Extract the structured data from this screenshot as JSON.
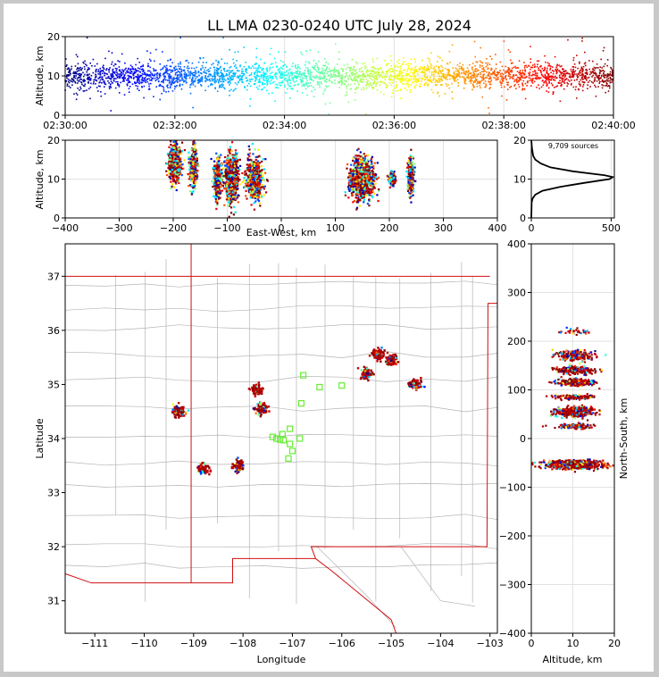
{
  "title": "LL LMA 0230-0240 UTC July 28, 2024",
  "chart_data": [
    {
      "id": "time-height",
      "type": "scatter",
      "ylabel": "Altitude, km",
      "ylim": [
        0,
        20
      ],
      "y_ticks": [
        0,
        10,
        20
      ],
      "x_ticks": [
        "02:30:00",
        "02:32:00",
        "02:34:00",
        "02:36:00",
        "02:38:00",
        "02:40:00"
      ],
      "x_range_seconds": [
        0,
        600
      ],
      "points_color": "time-coded (blue to dark red)"
    },
    {
      "id": "ew-altitude",
      "type": "scatter",
      "xlabel": "East-West, km",
      "ylabel": "Altitude, km",
      "xlim": [
        -400,
        400
      ],
      "ylim": [
        0,
        20
      ],
      "x_ticks": [
        -400,
        -300,
        -200,
        -100,
        0,
        100,
        200,
        300,
        400
      ],
      "y_ticks": [
        0,
        10,
        20
      ],
      "clusters": [
        {
          "x": -197,
          "alt": 14,
          "spread_x": 6,
          "spread_alt": 3
        },
        {
          "x": -162,
          "alt": 13,
          "spread_x": 4,
          "spread_alt": 3
        },
        {
          "x": -118,
          "alt": 10,
          "spread_x": 4,
          "spread_alt": 3
        },
        {
          "x": -92,
          "alt": 10,
          "spread_x": 7,
          "spread_alt": 4
        },
        {
          "x": -50,
          "alt": 10,
          "spread_x": 8,
          "spread_alt": 3
        },
        {
          "x": 150,
          "alt": 10,
          "spread_x": 12,
          "spread_alt": 3
        },
        {
          "x": 205,
          "alt": 10,
          "spread_x": 3,
          "spread_alt": 1
        },
        {
          "x": 240,
          "alt": 11,
          "spread_x": 3,
          "spread_alt": 3
        }
      ]
    },
    {
      "id": "altitude-histogram",
      "type": "line",
      "annotation": "9,709 sources",
      "xlim": [
        0,
        520
      ],
      "ylim": [
        0,
        20
      ],
      "x_ticks": [
        0,
        500
      ],
      "y_ticks": [
        0,
        10,
        20
      ],
      "altitude": [
        0,
        4,
        5,
        6,
        7,
        8,
        9,
        10,
        10.5,
        11,
        12,
        13,
        14,
        15,
        16,
        18,
        20
      ],
      "count": [
        0,
        2,
        8,
        25,
        70,
        180,
        330,
        490,
        510,
        460,
        260,
        120,
        60,
        25,
        12,
        4,
        0
      ]
    },
    {
      "id": "plan-view",
      "type": "scatter",
      "xlabel": "Longitude",
      "ylabel": "Latitude",
      "xlim": [
        -111.6,
        -102.85
      ],
      "ylim": [
        30.4,
        37.6
      ],
      "x_ticks": [
        -111,
        -110,
        -109,
        -108,
        -107,
        -106,
        -105,
        -104,
        -103
      ],
      "y_ticks": [
        31,
        32,
        33,
        34,
        35,
        36,
        37
      ],
      "stations": [
        [
          -106.78,
          35.17
        ],
        [
          -106.45,
          34.95
        ],
        [
          -106.0,
          34.98
        ],
        [
          -106.82,
          34.65
        ],
        [
          -107.05,
          34.18
        ],
        [
          -107.2,
          34.08
        ],
        [
          -107.32,
          34.0
        ],
        [
          -107.4,
          34.03
        ],
        [
          -107.18,
          33.97
        ],
        [
          -107.05,
          33.9
        ],
        [
          -107.0,
          33.77
        ],
        [
          -106.85,
          34.0
        ],
        [
          -107.08,
          33.63
        ],
        [
          -107.25,
          33.98
        ]
      ],
      "clusters": [
        {
          "lon": -109.3,
          "lat": 34.5
        },
        {
          "lon": -108.8,
          "lat": 33.45
        },
        {
          "lon": -108.1,
          "lat": 33.5
        },
        {
          "lon": -107.62,
          "lat": 34.55
        },
        {
          "lon": -107.72,
          "lat": 34.9
        },
        {
          "lon": -105.5,
          "lat": 35.2
        },
        {
          "lon": -105.25,
          "lat": 35.55
        },
        {
          "lon": -105.0,
          "lat": 35.45
        },
        {
          "lon": -104.5,
          "lat": 35.0
        }
      ]
    },
    {
      "id": "ns-altitude",
      "type": "scatter",
      "xlabel": "Altitude, km",
      "ylabel": "North-South, km",
      "xlim": [
        0,
        20
      ],
      "ylim": [
        -400,
        400
      ],
      "x_ticks": [
        0,
        10,
        20
      ],
      "y_ticks": [
        -400,
        -300,
        -200,
        -100,
        0,
        100,
        200,
        300,
        400
      ]
    }
  ]
}
